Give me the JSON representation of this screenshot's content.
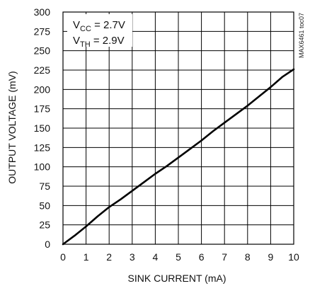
{
  "chart_data": {
    "type": "line",
    "title": "",
    "xlabel": "SINK CURRENT (mA)",
    "ylabel": "OUTPUT VOLTAGE (mV)",
    "xlim": [
      0,
      10
    ],
    "ylim": [
      0,
      300
    ],
    "xticks": [
      0,
      1,
      2,
      3,
      4,
      5,
      6,
      7,
      8,
      9,
      10
    ],
    "yticks": [
      0,
      25,
      50,
      75,
      100,
      125,
      150,
      175,
      200,
      225,
      250,
      275,
      300
    ],
    "grid": true,
    "conditions": {
      "vcc": {
        "base": "V",
        "sub": "CC",
        "rest": " = 2.7V"
      },
      "vth": {
        "base": "V",
        "sub": "TH",
        "rest": " = 2.9V"
      }
    },
    "part_number": "MAX6461 toc07",
    "series": [
      {
        "x": [
          0,
          0.5,
          1,
          1.5,
          2,
          2.5,
          3,
          3.5,
          4,
          4.5,
          5,
          5.5,
          6,
          6.5,
          7,
          7.5,
          8,
          8.5,
          9,
          9.5,
          10
        ],
        "y": [
          0,
          11,
          23,
          36,
          48,
          58,
          69,
          80,
          91,
          101,
          112,
          123,
          134,
          146,
          157,
          168,
          179,
          191,
          203,
          216,
          226
        ]
      }
    ],
    "line_color": "#000000",
    "grid_color": "#000000"
  }
}
